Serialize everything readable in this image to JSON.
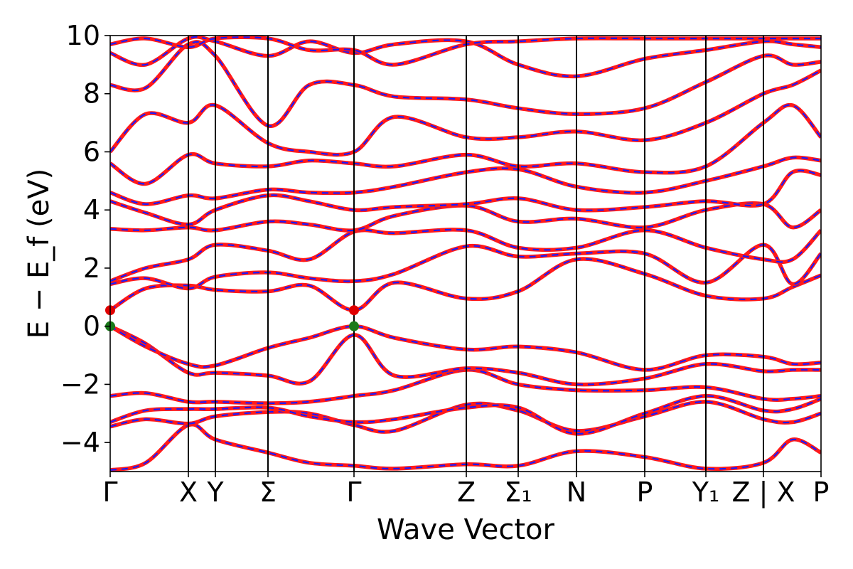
{
  "chart_data": {
    "type": "line",
    "title": "",
    "xlabel": "Wave Vector",
    "ylabel": "E − E_f (eV)",
    "ylim": [
      -5,
      10
    ],
    "yticks": [
      -4,
      -2,
      0,
      2,
      4,
      6,
      8,
      10
    ],
    "ytick_labels": [
      "−4",
      "−2",
      "0",
      "2",
      "4",
      "6",
      "8",
      "10"
    ],
    "grid": false,
    "kpoints": [
      {
        "label": "Γ",
        "x": 0.0
      },
      {
        "label": "X",
        "x": 0.11
      },
      {
        "label": "Y",
        "x": 0.148
      },
      {
        "label": "Σ",
        "x": 0.222
      },
      {
        "label": "Γ",
        "x": 0.343
      },
      {
        "label": "Z",
        "x": 0.501
      },
      {
        "label": "Σ₁",
        "x": 0.574
      },
      {
        "label": "N",
        "x": 0.656
      },
      {
        "label": "P",
        "x": 0.752
      },
      {
        "label": "Y₁",
        "x": 0.838
      },
      {
        "label": "Z | X",
        "x": 0.919
      },
      {
        "label": "P",
        "x": 1.0
      }
    ],
    "markers": [
      {
        "x": 0.0,
        "y": 0.55,
        "color": "#e00000"
      },
      {
        "x": 0.0,
        "y": 0.0,
        "color": "#1a7a1a"
      },
      {
        "x": 0.343,
        "y": 0.55,
        "color": "#e00000"
      },
      {
        "x": 0.343,
        "y": 0.0,
        "color": "#1a7a1a"
      }
    ],
    "series_styles": [
      {
        "color": "#ff1a1a",
        "dash": "solid"
      },
      {
        "color": "#1a1aff",
        "dash": "dashed"
      }
    ],
    "bands": [
      {
        "x": [
          0.0,
          0.05,
          0.11,
          0.148,
          0.222,
          0.28,
          0.343,
          0.4,
          0.501,
          0.574,
          0.656,
          0.752,
          0.838,
          0.919,
          0.96,
          1.0
        ],
        "y": [
          -4.95,
          -4.7,
          -3.4,
          -3.9,
          -4.35,
          -4.7,
          -4.8,
          -4.9,
          -4.75,
          -4.8,
          -4.3,
          -4.5,
          -4.9,
          -4.7,
          -3.9,
          -4.35
        ]
      },
      {
        "x": [
          0.0,
          0.05,
          0.11,
          0.148,
          0.222,
          0.28,
          0.343,
          0.4,
          0.501,
          0.574,
          0.656,
          0.752,
          0.838,
          0.919,
          0.96,
          1.0
        ],
        "y": [
          -3.45,
          -3.2,
          -3.35,
          -3.1,
          -2.95,
          -3.0,
          -3.4,
          -3.6,
          -2.7,
          -2.9,
          -3.6,
          -3.1,
          -2.6,
          -3.2,
          -3.3,
          -3.0
        ]
      },
      {
        "x": [
          0.0,
          0.05,
          0.11,
          0.148,
          0.222,
          0.28,
          0.343,
          0.4,
          0.501,
          0.574,
          0.656,
          0.752,
          0.838,
          0.919,
          0.96,
          1.0
        ],
        "y": [
          -3.3,
          -2.9,
          -2.85,
          -2.85,
          -2.8,
          -3.1,
          -3.3,
          -3.2,
          -2.8,
          -2.8,
          -3.7,
          -3.0,
          -2.4,
          -2.9,
          -2.85,
          -2.5
        ]
      },
      {
        "x": [
          0.0,
          0.05,
          0.11,
          0.148,
          0.222,
          0.28,
          0.343,
          0.4,
          0.501,
          0.574,
          0.656,
          0.752,
          0.838,
          0.919,
          0.96,
          1.0
        ],
        "y": [
          -2.4,
          -2.3,
          -2.6,
          -2.6,
          -2.65,
          -2.6,
          -2.4,
          -2.2,
          -1.5,
          -2.0,
          -2.2,
          -2.2,
          -2.1,
          -2.5,
          -2.5,
          -2.4
        ]
      },
      {
        "x": [
          0.0,
          0.05,
          0.11,
          0.148,
          0.222,
          0.28,
          0.343,
          0.4,
          0.501,
          0.574,
          0.656,
          0.752,
          0.838,
          0.919,
          0.96,
          1.0
        ],
        "y": [
          0.0,
          -0.6,
          -1.6,
          -1.6,
          -1.7,
          -1.9,
          -0.3,
          -1.7,
          -1.45,
          -1.6,
          -2.0,
          -1.8,
          -1.3,
          -1.55,
          -1.5,
          -1.5
        ]
      },
      {
        "x": [
          0.0,
          0.05,
          0.11,
          0.148,
          0.222,
          0.28,
          0.343,
          0.4,
          0.501,
          0.574,
          0.656,
          0.752,
          0.838,
          0.919,
          0.96,
          1.0
        ],
        "y": [
          0.0,
          -0.7,
          -1.3,
          -1.35,
          -0.75,
          -0.4,
          0.0,
          -0.4,
          -0.8,
          -0.7,
          -0.9,
          -1.5,
          -1.0,
          -1.05,
          -1.3,
          -1.25
        ]
      },
      {
        "x": [
          0.0,
          0.05,
          0.11,
          0.148,
          0.222,
          0.28,
          0.343,
          0.4,
          0.501,
          0.574,
          0.656,
          0.752,
          0.838,
          0.919,
          0.96,
          1.0
        ],
        "y": [
          0.55,
          1.3,
          1.4,
          1.25,
          1.2,
          1.4,
          0.55,
          1.5,
          0.95,
          1.2,
          2.3,
          1.8,
          1.05,
          0.95,
          1.35,
          1.75
        ]
      },
      {
        "x": [
          0.0,
          0.05,
          0.11,
          0.148,
          0.222,
          0.28,
          0.343,
          0.4,
          0.501,
          0.574,
          0.656,
          0.752,
          0.838,
          0.919,
          0.96,
          1.0
        ],
        "y": [
          1.45,
          1.65,
          1.3,
          1.7,
          1.85,
          1.65,
          1.55,
          1.8,
          2.75,
          2.4,
          2.5,
          2.5,
          1.5,
          2.8,
          1.45,
          2.5
        ]
      },
      {
        "x": [
          0.0,
          0.05,
          0.11,
          0.148,
          0.222,
          0.28,
          0.343,
          0.4,
          0.501,
          0.574,
          0.656,
          0.752,
          0.838,
          0.919,
          0.96,
          1.0
        ],
        "y": [
          1.55,
          2.0,
          2.3,
          2.8,
          2.6,
          2.3,
          3.25,
          3.2,
          3.3,
          2.7,
          2.7,
          3.3,
          2.7,
          2.3,
          2.3,
          3.3
        ]
      },
      {
        "x": [
          0.0,
          0.05,
          0.11,
          0.148,
          0.222,
          0.28,
          0.343,
          0.4,
          0.501,
          0.574,
          0.656,
          0.752,
          0.838,
          0.919,
          0.96,
          1.0
        ],
        "y": [
          3.35,
          3.3,
          3.4,
          3.3,
          3.6,
          3.5,
          3.3,
          3.8,
          4.15,
          3.6,
          3.7,
          3.4,
          4.0,
          4.2,
          3.4,
          4.0
        ]
      },
      {
        "x": [
          0.0,
          0.05,
          0.11,
          0.148,
          0.222,
          0.28,
          0.343,
          0.4,
          0.501,
          0.574,
          0.656,
          0.752,
          0.838,
          0.919,
          0.96,
          1.0
        ],
        "y": [
          4.3,
          3.9,
          3.5,
          4.0,
          4.5,
          4.3,
          4.0,
          4.1,
          4.2,
          4.4,
          4.0,
          4.1,
          4.3,
          4.2,
          5.3,
          5.2
        ]
      },
      {
        "x": [
          0.0,
          0.05,
          0.11,
          0.148,
          0.222,
          0.28,
          0.343,
          0.4,
          0.501,
          0.574,
          0.656,
          0.752,
          0.838,
          0.919,
          0.96,
          1.0
        ],
        "y": [
          4.6,
          4.2,
          4.5,
          4.4,
          4.7,
          4.6,
          4.6,
          4.8,
          5.3,
          5.4,
          4.8,
          4.6,
          5.0,
          5.5,
          5.8,
          5.7
        ]
      },
      {
        "x": [
          0.0,
          0.05,
          0.11,
          0.148,
          0.222,
          0.28,
          0.343,
          0.4,
          0.501,
          0.574,
          0.656,
          0.752,
          0.838,
          0.919,
          0.96,
          1.0
        ],
        "y": [
          5.6,
          4.9,
          5.9,
          5.6,
          5.5,
          5.7,
          5.6,
          5.5,
          5.9,
          5.5,
          5.6,
          5.3,
          5.5,
          7.0,
          7.6,
          6.5
        ]
      },
      {
        "x": [
          0.0,
          0.05,
          0.11,
          0.148,
          0.222,
          0.28,
          0.343,
          0.4,
          0.501,
          0.574,
          0.656,
          0.752,
          0.838,
          0.919,
          0.96,
          1.0
        ],
        "y": [
          6.0,
          7.3,
          7.0,
          7.6,
          6.3,
          6.0,
          6.0,
          7.2,
          6.5,
          6.5,
          6.7,
          6.4,
          7.0,
          8.0,
          8.3,
          8.8
        ]
      },
      {
        "x": [
          0.0,
          0.05,
          0.11,
          0.148,
          0.222,
          0.28,
          0.343,
          0.4,
          0.501,
          0.574,
          0.656,
          0.752,
          0.838,
          0.919,
          0.96,
          1.0
        ],
        "y": [
          8.3,
          8.2,
          9.7,
          9.3,
          6.9,
          8.3,
          8.3,
          7.9,
          7.8,
          7.5,
          7.3,
          7.5,
          8.4,
          9.3,
          9.0,
          9.1
        ]
      },
      {
        "x": [
          0.0,
          0.05,
          0.11,
          0.148,
          0.222,
          0.28,
          0.343,
          0.4,
          0.501,
          0.574,
          0.656,
          0.752,
          0.838,
          0.919,
          0.96,
          1.0
        ],
        "y": [
          9.4,
          9.0,
          9.9,
          9.8,
          9.3,
          9.8,
          9.4,
          9.7,
          9.8,
          9.0,
          8.6,
          9.2,
          9.5,
          9.8,
          9.7,
          9.6
        ]
      },
      {
        "x": [
          0.0,
          0.05,
          0.11,
          0.148,
          0.222,
          0.28,
          0.343,
          0.4,
          0.501,
          0.574,
          0.656,
          0.752,
          0.838,
          0.919,
          0.96,
          1.0
        ],
        "y": [
          9.7,
          9.9,
          9.6,
          9.9,
          9.9,
          9.5,
          9.5,
          9.0,
          9.7,
          9.8,
          9.9,
          9.9,
          9.9,
          9.9,
          9.9,
          9.9
        ]
      }
    ]
  }
}
